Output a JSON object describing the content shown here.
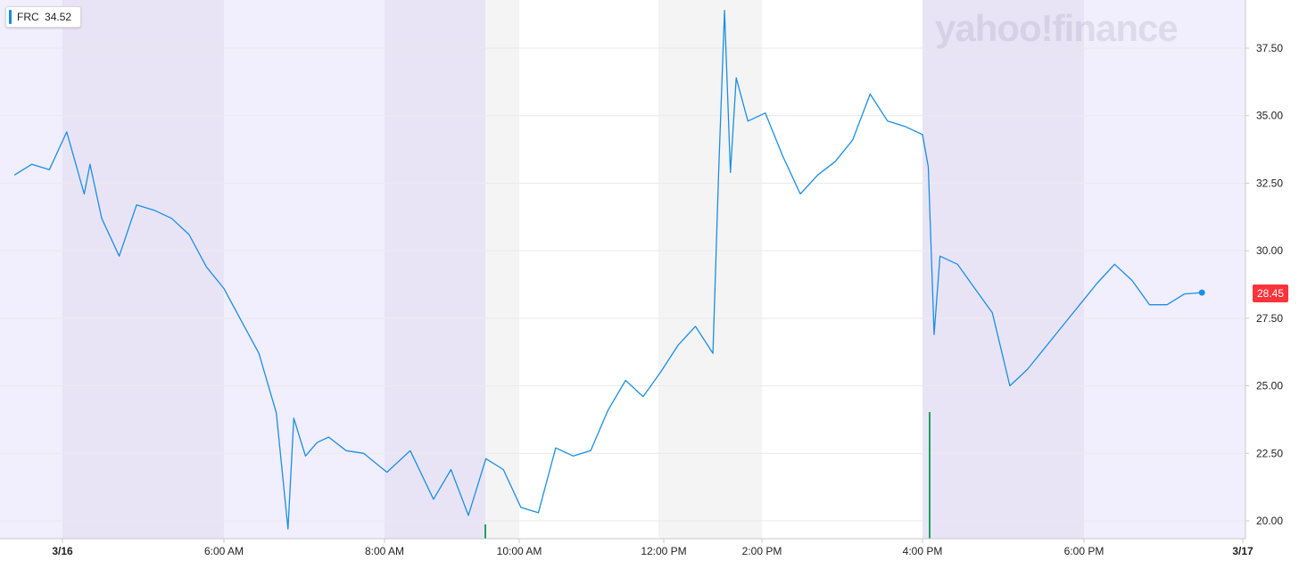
{
  "ticker": {
    "symbol": "FRC",
    "value": "34.52"
  },
  "watermark": "yahoo!finance",
  "last_price_label": "28.45",
  "colors": {
    "line": "#1a8fe3",
    "extended_hours_band": "#f1eefd",
    "extended_hours_band_alt": "#e8e4f6",
    "regular_hours_band": "#f4f4f4",
    "price_badge": "#ff333a",
    "volume": "#1aa35a"
  },
  "chart_data": {
    "type": "line",
    "title": "",
    "xlabel": "",
    "ylabel": "",
    "x_ticks": [
      "3/16",
      "6:00 AM",
      "8:00 AM",
      "10:00 AM",
      "12:00 PM",
      "2:00 PM",
      "4:00 PM",
      "6:00 PM",
      "3/17"
    ],
    "y_ticks": [
      "37.50",
      "35.00",
      "32.50",
      "30.00",
      "27.50",
      "25.00",
      "22.50",
      "20.00"
    ],
    "ylim": [
      19.4,
      38.9
    ],
    "grid": true,
    "legend": "none",
    "y_axis_side": "right",
    "series": [
      {
        "x": [
          "3/16 03:00",
          "3/16 03:15",
          "3/16 03:30",
          "3/16 03:45",
          "3/16 04:00",
          "3/16 04:05",
          "3/16 04:15",
          "3/16 04:30",
          "3/16 04:45",
          "3/16 05:00",
          "3/16 05:15",
          "3/16 05:30",
          "3/16 05:45",
          "3/16 06:00",
          "3/16 06:15",
          "3/16 06:30",
          "3/16 06:45",
          "3/16 06:55",
          "3/16 07:00",
          "3/16 07:10",
          "3/16 07:20",
          "3/16 07:30",
          "3/16 07:45",
          "3/16 08:00",
          "3/16 08:20",
          "3/16 08:40",
          "3/16 09:00",
          "3/16 09:15",
          "3/16 09:30",
          "3/16 09:45",
          "3/16 10:00",
          "3/16 10:15",
          "3/16 10:30",
          "3/16 10:45",
          "3/16 11:00",
          "3/16 11:15",
          "3/16 11:30",
          "3/16 11:45",
          "3/16 12:00",
          "3/16 12:15",
          "3/16 12:30",
          "3/16 12:45",
          "3/16 13:00",
          "3/16 13:05",
          "3/16 13:10",
          "3/16 13:15",
          "3/16 13:20",
          "3/16 13:30",
          "3/16 13:45",
          "3/16 14:00",
          "3/16 14:15",
          "3/16 14:30",
          "3/16 14:45",
          "3/16 15:00",
          "3/16 15:15",
          "3/16 15:30",
          "3/16 15:45",
          "3/16 16:00",
          "3/16 16:05",
          "3/16 16:10",
          "3/16 16:15",
          "3/16 16:30",
          "3/16 16:45",
          "3/16 17:00",
          "3/16 17:15",
          "3/16 17:30",
          "3/16 17:45",
          "3/16 18:00",
          "3/16 18:15",
          "3/16 18:30",
          "3/16 18:45",
          "3/16 19:00",
          "3/16 19:15",
          "3/16 19:30",
          "3/16 19:45",
          "3/16 20:00"
        ],
        "y": [
          32.8,
          33.2,
          33.0,
          34.4,
          32.1,
          33.2,
          31.2,
          29.8,
          31.7,
          31.5,
          31.2,
          30.6,
          29.4,
          28.6,
          27.4,
          26.2,
          24.0,
          19.7,
          23.8,
          22.4,
          22.9,
          23.1,
          22.6,
          22.5,
          21.8,
          22.6,
          20.8,
          21.9,
          20.2,
          22.3,
          21.9,
          20.5,
          20.3,
          22.7,
          22.4,
          22.6,
          24.1,
          25.2,
          24.6,
          25.5,
          26.5,
          27.2,
          26.2,
          33.0,
          38.9,
          32.9,
          36.4,
          34.8,
          35.1,
          33.5,
          32.1,
          32.8,
          33.3,
          34.1,
          35.8,
          34.8,
          34.6,
          34.3,
          33.1,
          26.9,
          29.8,
          29.5,
          28.6,
          27.7,
          25.0,
          25.6,
          26.4,
          27.2,
          28.0,
          28.8,
          29.5,
          28.9,
          28.0,
          28.0,
          28.4,
          28.45
        ]
      }
    ]
  }
}
